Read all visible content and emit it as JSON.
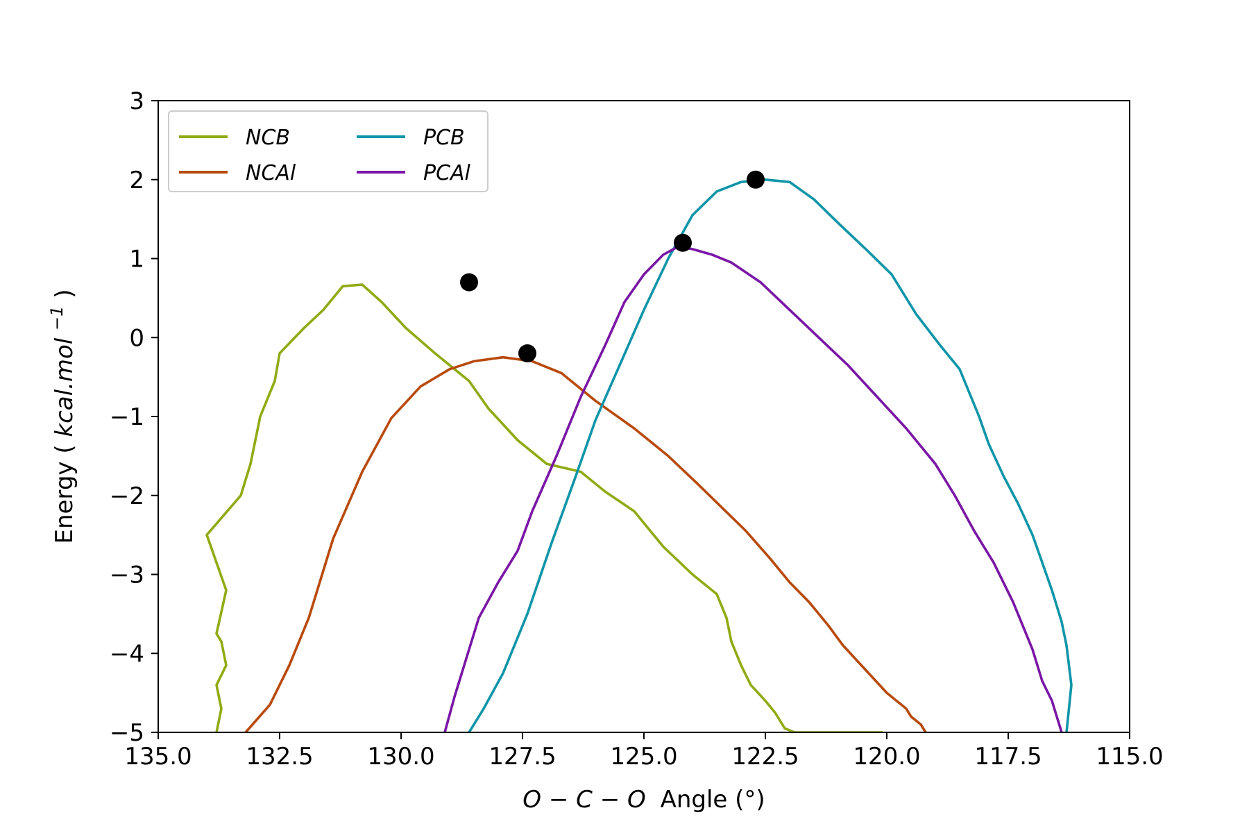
{
  "chart_data": {
    "type": "line",
    "xlabel_math": "O − C − O",
    "xlabel_rest": "Angle (°)",
    "ylabel_prefix": "Energy (",
    "ylabel_math": "kcal.mol",
    "ylabel_sup": "−1",
    "ylabel_suffix": ")",
    "xlim": [
      135.0,
      115.0
    ],
    "ylim": [
      -5,
      3
    ],
    "x_reversed": true,
    "grid": false,
    "legend_placement": "top-left",
    "legend_columns": 2,
    "xticks": [
      135.0,
      132.5,
      130.0,
      127.5,
      125.0,
      122.5,
      120.0,
      117.5,
      115.0
    ],
    "xtick_labels": [
      "135.0",
      "132.5",
      "130.0",
      "127.5",
      "125.0",
      "122.5",
      "120.0",
      "117.5",
      "115.0"
    ],
    "yticks": [
      -5,
      -4,
      -3,
      -2,
      -1,
      0,
      1,
      2,
      3
    ],
    "ytick_labels": [
      "−5",
      "−4",
      "−3",
      "−2",
      "−1",
      "0",
      "1",
      "2",
      "3"
    ],
    "series": [
      {
        "name": "NCB",
        "color": "#8fab13",
        "x": [
          133.8,
          133.7,
          133.8,
          133.6,
          133.7,
          133.8,
          133.6,
          134.0,
          133.3,
          133.1,
          132.9,
          132.6,
          132.5,
          132.0,
          131.6,
          131.2,
          130.8,
          130.4,
          129.9,
          129.3,
          128.6,
          128.2,
          127.6,
          127.0,
          126.3,
          125.8,
          125.2,
          124.6,
          124.0,
          123.5,
          123.3,
          123.2,
          123.0,
          122.8,
          122.5,
          122.3,
          122.1,
          121.9,
          121.7,
          121.5,
          121.2,
          120.9,
          120.6,
          120.4,
          120.2,
          120.1
        ],
        "y": [
          -5.0,
          -4.7,
          -4.4,
          -4.15,
          -3.85,
          -3.75,
          -3.2,
          -2.5,
          -2.0,
          -1.6,
          -1.0,
          -0.55,
          -0.2,
          0.12,
          0.35,
          0.65,
          0.67,
          0.45,
          0.12,
          -0.2,
          -0.55,
          -0.9,
          -1.3,
          -1.6,
          -1.7,
          -1.95,
          -2.2,
          -2.65,
          -3.0,
          -3.25,
          -3.55,
          -3.85,
          -4.15,
          -4.4,
          -4.6,
          -4.75,
          -4.95,
          -5.0,
          -5.0,
          -5.0,
          -5.0,
          -5.0,
          -5.0,
          -5.0,
          -5.0,
          -5.0
        ]
      },
      {
        "name": "NCAl",
        "color": "#b84a0c",
        "x": [
          133.2,
          132.7,
          132.3,
          131.9,
          131.4,
          130.8,
          130.2,
          129.6,
          129.0,
          128.5,
          127.9,
          127.3,
          126.7,
          126.0,
          125.2,
          124.5,
          123.9,
          123.4,
          122.9,
          122.4,
          122.0,
          121.6,
          121.2,
          120.9,
          120.6,
          120.3,
          120.0,
          119.8,
          119.6,
          119.5,
          119.3,
          119.2
        ],
        "y": [
          -5.0,
          -4.65,
          -4.15,
          -3.55,
          -2.55,
          -1.7,
          -1.02,
          -0.62,
          -0.4,
          -0.3,
          -0.25,
          -0.3,
          -0.45,
          -0.8,
          -1.15,
          -1.5,
          -1.85,
          -2.15,
          -2.45,
          -2.8,
          -3.1,
          -3.35,
          -3.65,
          -3.9,
          -4.1,
          -4.3,
          -4.5,
          -4.6,
          -4.7,
          -4.8,
          -4.9,
          -5.0
        ]
      },
      {
        "name": "PCB",
        "color": "#1095a8",
        "x": [
          128.6,
          128.3,
          127.9,
          127.4,
          126.9,
          126.4,
          126.0,
          125.5,
          125.0,
          124.5,
          124.0,
          123.5,
          123.0,
          122.5,
          122.0,
          121.5,
          121.0,
          120.4,
          119.9,
          119.4,
          118.9,
          118.5,
          118.3,
          118.1,
          117.9,
          117.6,
          117.3,
          117.0,
          116.8,
          116.6,
          116.4,
          116.3,
          116.2,
          116.3
        ],
        "y": [
          -5.0,
          -4.7,
          -4.25,
          -3.5,
          -2.6,
          -1.75,
          -1.05,
          -0.35,
          0.35,
          1.0,
          1.55,
          1.85,
          1.97,
          2.0,
          1.97,
          1.75,
          1.45,
          1.1,
          0.8,
          0.3,
          -0.1,
          -0.4,
          -0.7,
          -1.0,
          -1.35,
          -1.75,
          -2.1,
          -2.5,
          -2.85,
          -3.2,
          -3.6,
          -3.9,
          -4.4,
          -5.0
        ]
      },
      {
        "name": "PCAl",
        "color": "#7a17a6",
        "x": [
          129.1,
          128.9,
          128.7,
          128.4,
          128.0,
          127.6,
          127.3,
          126.8,
          126.3,
          125.8,
          125.4,
          125.0,
          124.6,
          124.3,
          124.0,
          123.6,
          123.2,
          122.6,
          122.0,
          121.4,
          120.8,
          120.2,
          119.6,
          119.0,
          118.6,
          118.2,
          117.8,
          117.4,
          117.0,
          116.8,
          116.6,
          116.5,
          116.4
        ],
        "y": [
          -5.0,
          -4.55,
          -4.15,
          -3.55,
          -3.1,
          -2.7,
          -2.2,
          -1.5,
          -0.75,
          -0.1,
          0.45,
          0.8,
          1.05,
          1.15,
          1.12,
          1.05,
          0.95,
          0.7,
          0.35,
          0.0,
          -0.35,
          -0.75,
          -1.15,
          -1.6,
          -2.0,
          -2.45,
          -2.85,
          -3.35,
          -3.95,
          -4.35,
          -4.6,
          -4.8,
          -5.0
        ]
      }
    ],
    "markers": [
      {
        "x": 128.6,
        "y": 0.7
      },
      {
        "x": 127.4,
        "y": -0.2
      },
      {
        "x": 122.7,
        "y": 2.0
      },
      {
        "x": 124.2,
        "y": 1.2
      }
    ],
    "marker_color": "#000000"
  }
}
